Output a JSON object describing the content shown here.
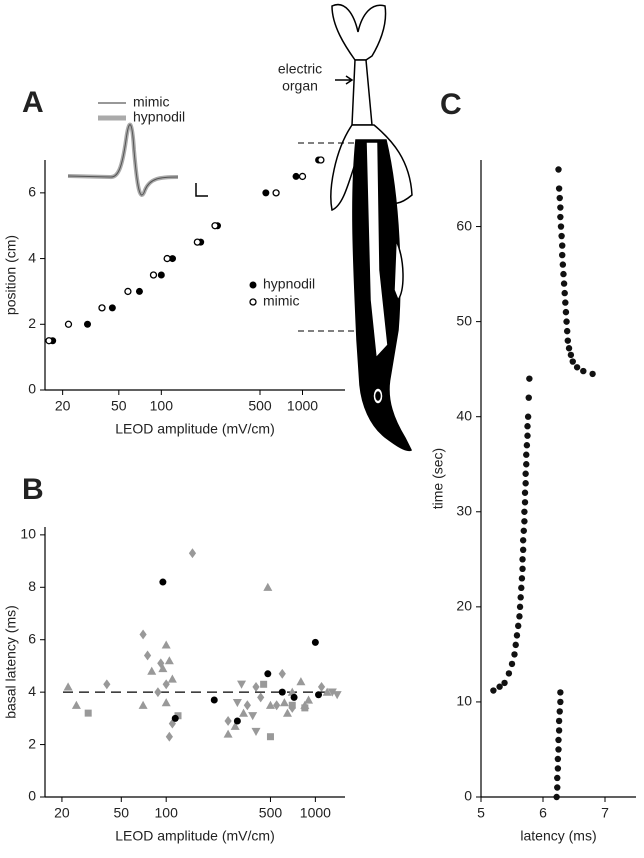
{
  "chart_data": [
    {
      "type": "scatter",
      "panel_label": "A",
      "xlabel": "LEOD amplitude (mV/cm)",
      "ylabel": "position (cm)",
      "xscale": "log",
      "xlim": [
        15,
        2000
      ],
      "ylim": [
        0,
        7
      ],
      "xticks": [
        20,
        50,
        100,
        500,
        1000
      ],
      "yticks": [
        0,
        2,
        4,
        6
      ],
      "annotation": [
        "electric",
        "organ"
      ],
      "series": [
        {
          "name": "hypnodil",
          "marker": "filled-circle",
          "color": "#000000",
          "trace_color": "#aaaaaa",
          "x": [
            17,
            30,
            45,
            70,
            100,
            120,
            190,
            250,
            550,
            900,
            1300
          ],
          "y": [
            1.5,
            2,
            2.5,
            3,
            3.5,
            4,
            4.5,
            5,
            6,
            6.5,
            7
          ]
        },
        {
          "name": "mimic",
          "marker": "open-circle",
          "color": "#000000",
          "trace_color": "#777777",
          "x": [
            16,
            22,
            38,
            58,
            88,
            110,
            180,
            240,
            650,
            1000,
            1350
          ],
          "y": [
            1.5,
            2,
            2.5,
            3,
            3.5,
            4,
            4.5,
            5,
            6,
            6.5,
            7
          ]
        }
      ]
    },
    {
      "type": "scatter",
      "panel_label": "B",
      "xlabel": "LEOD amplitude (mV/cm)",
      "ylabel": "basal latency (ms)",
      "xscale": "log",
      "xlim": [
        15.4,
        1580
      ],
      "ylim": [
        0,
        10.3
      ],
      "xticks": [
        20,
        50,
        100,
        500,
        1000
      ],
      "yticks": [
        0,
        2,
        4,
        6,
        8,
        10
      ],
      "reference_line": 4,
      "series": [
        {
          "marker": "triangle",
          "color": "#999999",
          "x": [
            22,
            25,
            70,
            80,
            95,
            100,
            105,
            110,
            100,
            260,
            290,
            330,
            480,
            500,
            620,
            650,
            700,
            800,
            850,
            900,
            1200
          ],
          "y": [
            4.2,
            3.5,
            3.5,
            4.8,
            4.9,
            5.8,
            5.2,
            4.5,
            3.6,
            2.4,
            2.7,
            3.2,
            8.0,
            3.5,
            3.6,
            3.2,
            4.0,
            4.4,
            3.5,
            3.7,
            4.0
          ]
        },
        {
          "marker": "diamond",
          "color": "#999999",
          "x": [
            40,
            70,
            75,
            88,
            92,
            100,
            105,
            110,
            150,
            260,
            350,
            400,
            430,
            550,
            600,
            700,
            1100
          ],
          "y": [
            4.3,
            6.2,
            5.4,
            4.0,
            5.1,
            4.3,
            2.3,
            2.8,
            9.3,
            2.9,
            3.5,
            4.2,
            3.8,
            3.5,
            4.7,
            3.4,
            4.2
          ]
        },
        {
          "marker": "square",
          "color": "#999999",
          "x": [
            30,
            120,
            450,
            700,
            850,
            500
          ],
          "y": [
            3.2,
            3.1,
            4.3,
            3.5,
            3.4,
            2.3
          ]
        },
        {
          "marker": "inverted-triangle",
          "color": "#999999",
          "x": [
            320,
            380,
            400,
            1300,
            1400,
            300
          ],
          "y": [
            4.3,
            3.1,
            2.5,
            4.0,
            3.9,
            3.6
          ]
        },
        {
          "marker": "filled-circle",
          "color": "#000000",
          "x": [
            95,
            115,
            210,
            300,
            480,
            600,
            720,
            1000,
            1050
          ],
          "y": [
            8.2,
            3.0,
            3.7,
            2.9,
            4.7,
            4.0,
            3.8,
            5.9,
            3.9
          ]
        }
      ]
    },
    {
      "type": "scatter",
      "panel_label": "C",
      "xlabel": "latency (ms)",
      "ylabel": "time (sec)",
      "xscale": "linear",
      "xlim": [
        5,
        7.5
      ],
      "ylim": [
        0,
        67
      ],
      "xticks": [
        5,
        6,
        7
      ],
      "yticks": [
        0,
        10,
        20,
        30,
        40,
        50,
        60
      ],
      "series": [
        {
          "marker": "dot",
          "color": "#111111",
          "x": [
            6.22,
            6.23,
            6.23,
            6.24,
            6.24,
            6.25,
            6.25,
            6.26,
            6.26,
            6.27,
            6.28,
            6.28,
            5.2,
            5.3,
            5.38,
            5.45,
            5.5,
            5.54,
            5.56,
            5.58,
            5.6,
            5.62,
            5.63,
            5.64,
            5.65,
            5.66,
            5.67,
            5.67,
            5.68,
            5.68,
            5.69,
            5.7,
            5.7,
            5.71,
            5.71,
            5.72,
            5.72,
            5.73,
            5.73,
            5.74,
            5.75,
            5.75,
            5.76,
            5.77,
            5.78,
            6.8,
            6.65,
            6.55,
            6.48,
            6.45,
            6.42,
            6.4,
            6.39,
            6.38,
            6.37,
            6.36,
            6.35,
            6.34,
            6.33,
            6.32,
            6.31,
            6.31,
            6.3,
            6.29,
            6.28,
            6.28,
            6.27,
            6.26,
            6.25
          ],
          "y": [
            0,
            1,
            2,
            3,
            4,
            5,
            6,
            7,
            8,
            9,
            10,
            11,
            11.2,
            11.6,
            12,
            13,
            14,
            15,
            16,
            17,
            18,
            19,
            20,
            21,
            22,
            23,
            24,
            25,
            26,
            27,
            28,
            29,
            30,
            31,
            32,
            33,
            34,
            35,
            36,
            37,
            38,
            39,
            40,
            42,
            44,
            44.5,
            44.8,
            45.2,
            45.8,
            46.5,
            47.2,
            48,
            49,
            50,
            51,
            52,
            53,
            54,
            55,
            56,
            57,
            58,
            59,
            60,
            61,
            62,
            63,
            64,
            66
          ]
        }
      ]
    }
  ]
}
